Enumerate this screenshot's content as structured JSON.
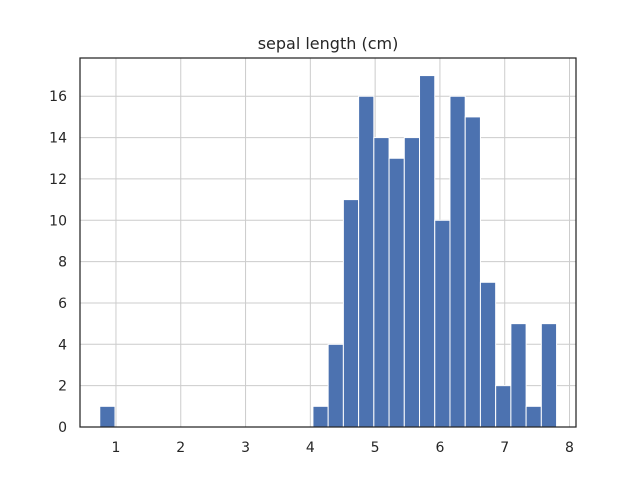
{
  "chart_data": {
    "type": "bar",
    "title": "sepal length (cm)",
    "xlabel": "",
    "ylabel": "",
    "xlim": [
      0.445,
      8.1
    ],
    "ylim": [
      0,
      17.85
    ],
    "xticks": [
      1,
      2,
      3,
      4,
      5,
      6,
      7,
      8
    ],
    "yticks": [
      0,
      2,
      4,
      6,
      8,
      10,
      12,
      14,
      16
    ],
    "grid": true,
    "bar_color": "#4c72b0",
    "bins": [
      {
        "left": 0.75,
        "right": 0.985,
        "value": 1
      },
      {
        "left": 0.985,
        "right": 1.22,
        "value": 0
      },
      {
        "left": 1.22,
        "right": 1.455,
        "value": 0
      },
      {
        "left": 1.455,
        "right": 1.69,
        "value": 0
      },
      {
        "left": 1.69,
        "right": 1.925,
        "value": 0
      },
      {
        "left": 1.925,
        "right": 2.16,
        "value": 0
      },
      {
        "left": 2.16,
        "right": 2.395,
        "value": 0
      },
      {
        "left": 2.395,
        "right": 2.63,
        "value": 0
      },
      {
        "left": 2.63,
        "right": 2.865,
        "value": 0
      },
      {
        "left": 2.865,
        "right": 3.1,
        "value": 0
      },
      {
        "left": 3.1,
        "right": 3.335,
        "value": 0
      },
      {
        "left": 3.335,
        "right": 3.57,
        "value": 0
      },
      {
        "left": 3.57,
        "right": 3.805,
        "value": 0
      },
      {
        "left": 3.805,
        "right": 4.04,
        "value": 0
      },
      {
        "left": 4.04,
        "right": 4.275,
        "value": 1
      },
      {
        "left": 4.275,
        "right": 4.51,
        "value": 4
      },
      {
        "left": 4.51,
        "right": 4.745,
        "value": 11
      },
      {
        "left": 4.745,
        "right": 4.98,
        "value": 16
      },
      {
        "left": 4.98,
        "right": 5.215,
        "value": 14
      },
      {
        "left": 5.215,
        "right": 5.45,
        "value": 13
      },
      {
        "left": 5.45,
        "right": 5.685,
        "value": 14
      },
      {
        "left": 5.685,
        "right": 5.92,
        "value": 17
      },
      {
        "left": 5.92,
        "right": 6.155,
        "value": 10
      },
      {
        "left": 6.155,
        "right": 6.39,
        "value": 16
      },
      {
        "left": 6.39,
        "right": 6.625,
        "value": 15
      },
      {
        "left": 6.625,
        "right": 6.86,
        "value": 7
      },
      {
        "left": 6.86,
        "right": 7.095,
        "value": 2
      },
      {
        "left": 7.095,
        "right": 7.33,
        "value": 5
      },
      {
        "left": 7.33,
        "right": 7.565,
        "value": 1
      },
      {
        "left": 7.565,
        "right": 7.8,
        "value": 5
      }
    ]
  }
}
